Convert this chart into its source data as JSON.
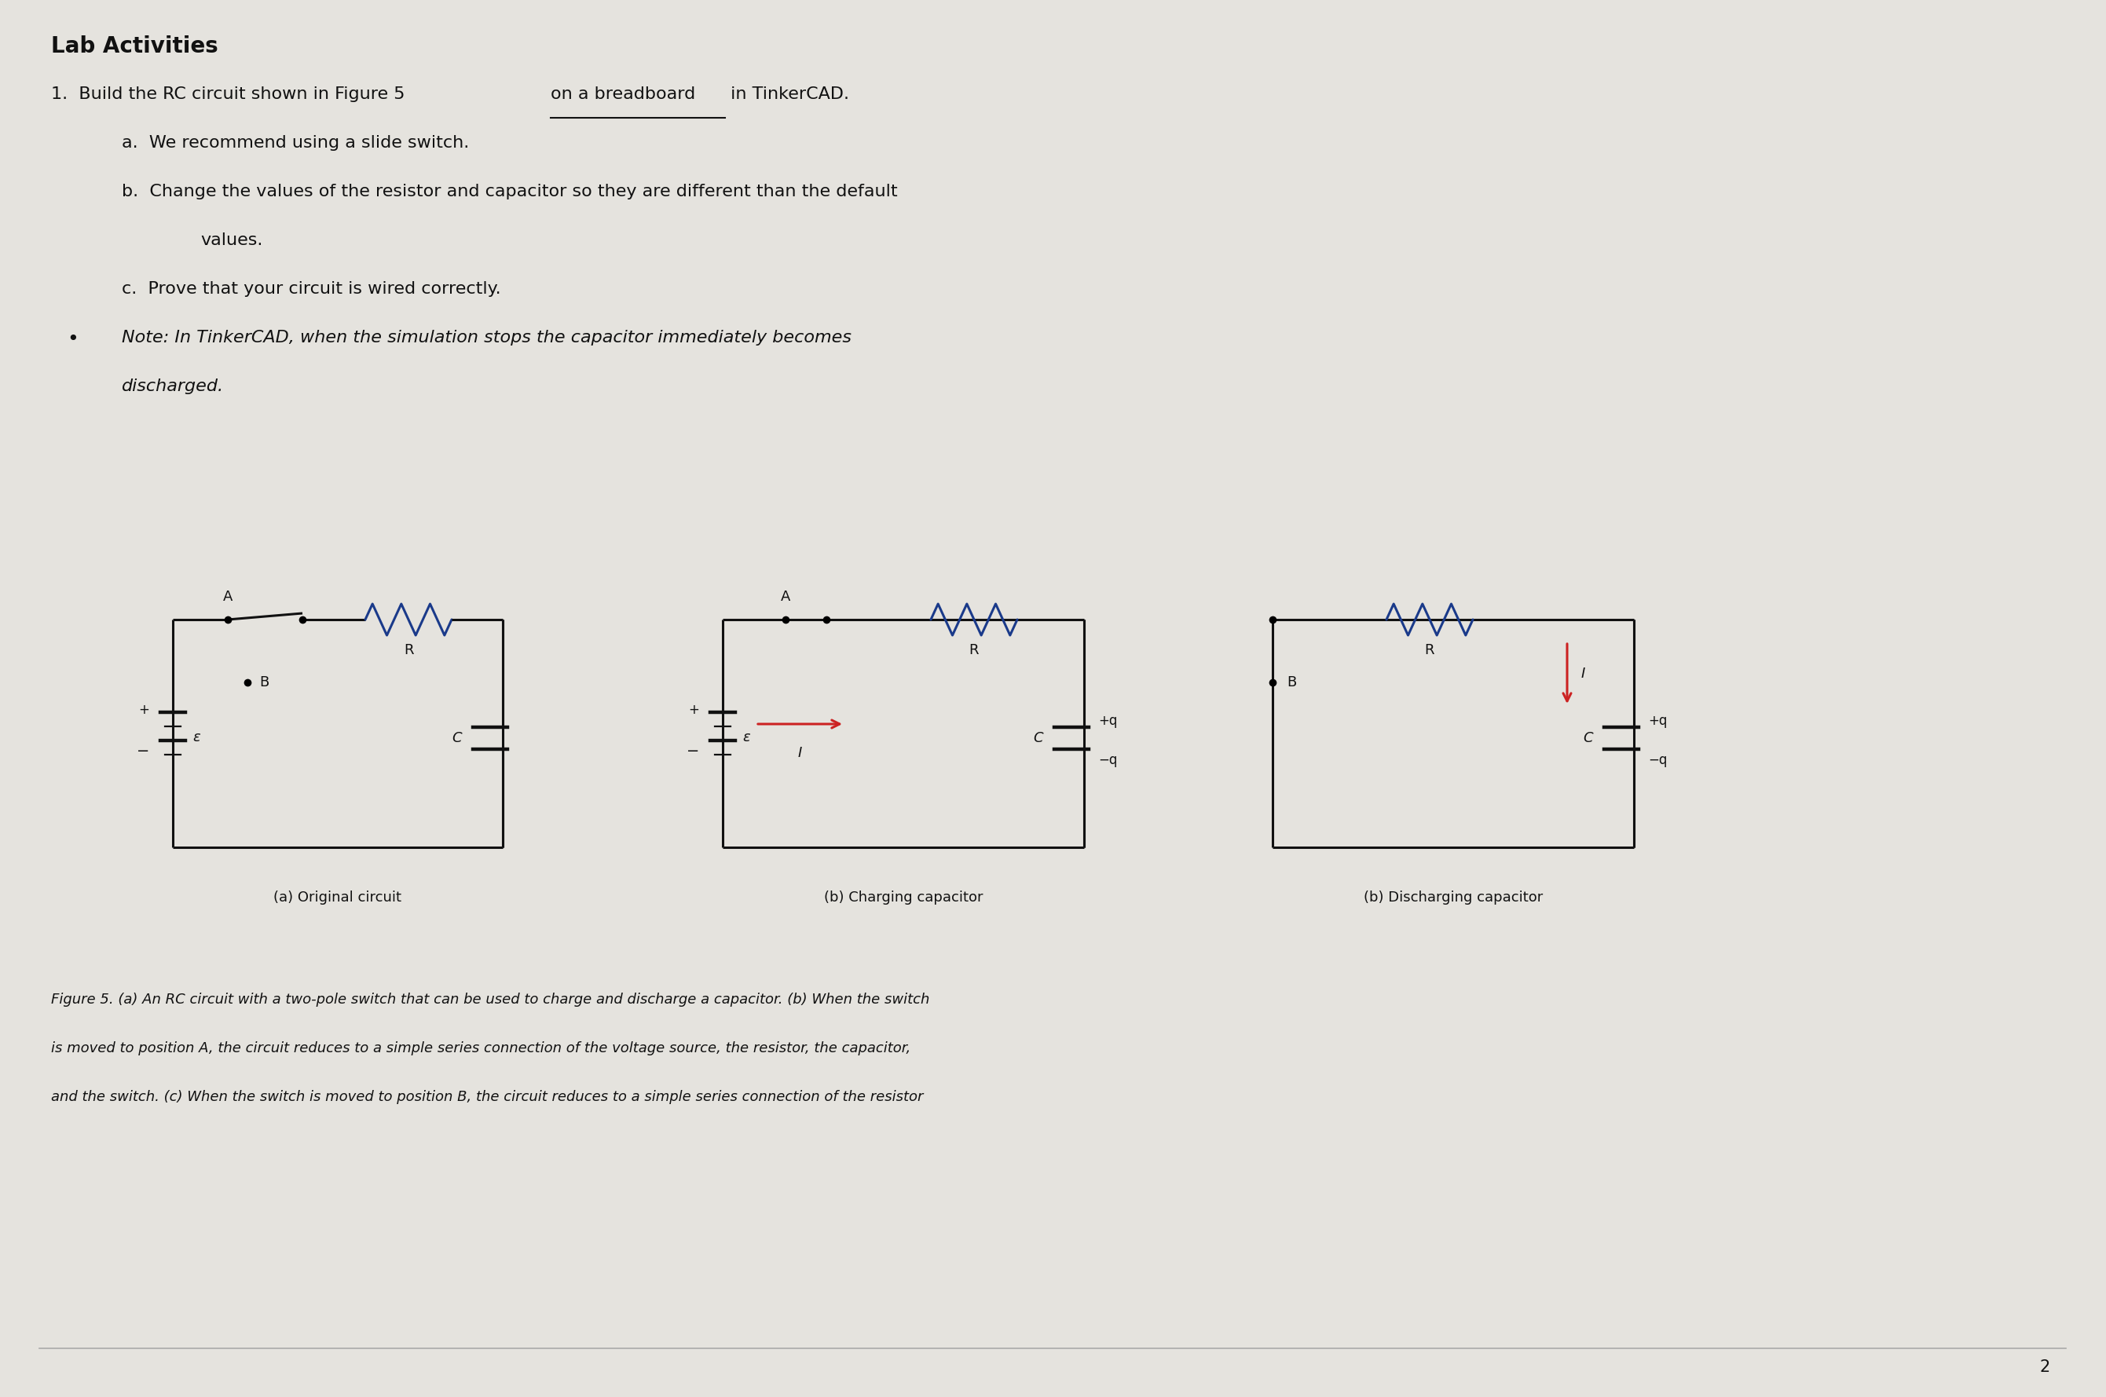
{
  "background_color": "#e5e3de",
  "title": "Lab Activities",
  "item1_pre": "1.  Build the RC circuit shown in Figure 5 ",
  "item1_underlined": "on a breadboard",
  "item1_post": " in TinkerCAD.",
  "item_a": "a.  We recommend using a slide switch.",
  "item_b1": "b.  Change the values of the resistor and capacitor so they are different than the default",
  "item_b2": "values.",
  "item_c": "c.  Prove that your circuit is wired correctly.",
  "bullet_note1": "Note: In TinkerCAD, when the simulation stops the capacitor immediately becomes",
  "bullet_note2": "discharged.",
  "figure_caption_line1": "Figure 5. (a) An RC circuit with a two-pole switch that can be used to charge and discharge a capacitor. (b) When the switch",
  "figure_caption_line2": "is moved to position A, the circuit reduces to a simple series connection of the voltage source, the resistor, the capacitor,",
  "figure_caption_line3": "and the switch. (c) When the switch is moved to position B, the circuit reduces to a simple series connection of the resistor",
  "label_a": "(a) Original circuit",
  "label_b": "(b) Charging capacitor",
  "label_c": "(b) Discharging capacitor",
  "page_number": "2",
  "text_color": "#111111",
  "wire_color": "#111111",
  "resistor_color": "#1a3a8a",
  "current_arrow_color": "#cc2222",
  "fs_title": 20,
  "fs_body": 16,
  "fs_italic": 16,
  "fs_small": 13,
  "fs_caption": 13
}
